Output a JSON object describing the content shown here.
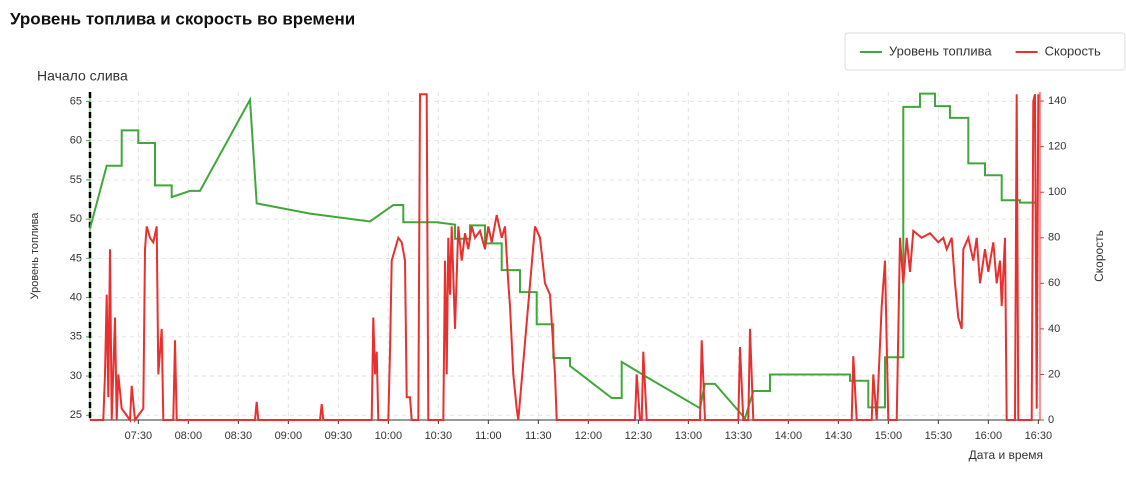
{
  "chart_data": {
    "type": "line",
    "title": "Уровень топлива и скорость во времени",
    "xlabel": "Дата и время",
    "ylabel": "Уровень топлива",
    "y2label": "Скорость",
    "legend": "top-right",
    "grid": true,
    "annotation": {
      "text": "Начало слива",
      "x": "07:01"
    },
    "xlim": [
      "07:01",
      "16:31"
    ],
    "xticks": [
      "07:30",
      "08:00",
      "08:30",
      "09:00",
      "09:30",
      "10:00",
      "10:30",
      "11:00",
      "11:30",
      "12:00",
      "12:30",
      "13:00",
      "13:30",
      "14:00",
      "14:30",
      "15:00",
      "15:30",
      "16:00",
      "16:30"
    ],
    "ylim": [
      24.4,
      66.2
    ],
    "yticks": [
      25,
      30,
      35,
      40,
      45,
      50,
      55,
      60,
      65
    ],
    "y2lim": [
      0,
      144
    ],
    "y2ticks": [
      0,
      20,
      40,
      60,
      80,
      100,
      120,
      140
    ],
    "series": [
      {
        "name": "Уровень топлива",
        "color": "#3fa83a",
        "axis": "y",
        "x": [
          "07:01",
          "07:11",
          "07:20",
          "07:20",
          "07:30",
          "07:30",
          "07:40",
          "07:40",
          "07:50",
          "07:50",
          "08:01",
          "08:07",
          "08:37",
          "08:41",
          "09:13",
          "09:49",
          "10:03",
          "10:09",
          "10:09",
          "10:29",
          "10:40",
          "10:40",
          "10:49",
          "10:49",
          "10:58",
          "10:58",
          "11:08",
          "11:08",
          "11:19",
          "11:19",
          "11:29",
          "11:29",
          "11:39",
          "11:39",
          "11:49",
          "11:49",
          "12:14",
          "12:20",
          "12:20",
          "12:38",
          "13:07",
          "13:10",
          "13:16",
          "13:34",
          "13:39",
          "13:49",
          "13:49",
          "14:37",
          "14:37",
          "14:48",
          "14:48",
          "14:58",
          "14:58",
          "15:09",
          "15:09",
          "15:19",
          "15:19",
          "15:28",
          "15:28",
          "15:37",
          "15:37",
          "15:48",
          "15:48",
          "15:58",
          "15:58",
          "16:08",
          "16:08",
          "16:19",
          "16:19",
          "16:29"
        ],
        "values": [
          48.8,
          56.8,
          56.8,
          61.3,
          61.3,
          59.7,
          59.7,
          54.3,
          54.3,
          52.8,
          53.6,
          53.6,
          65.2,
          52.0,
          50.7,
          49.7,
          51.8,
          51.8,
          49.6,
          49.6,
          49.3,
          47.5,
          47.5,
          49.2,
          49.2,
          46.9,
          46.9,
          43.5,
          43.5,
          40.7,
          40.7,
          36.6,
          36.6,
          32.3,
          32.3,
          31.3,
          27.2,
          27.2,
          31.8,
          29.5,
          25.9,
          29.0,
          29.0,
          24.6,
          28.1,
          28.1,
          30.2,
          30.2,
          29.4,
          29.4,
          26.0,
          26.0,
          32.4,
          32.4,
          64.3,
          64.3,
          66.0,
          66.0,
          64.4,
          64.4,
          62.9,
          62.9,
          57.1,
          57.1,
          55.6,
          55.6,
          52.4,
          52.4,
          52.1,
          52.1
        ]
      },
      {
        "name": "Скорость",
        "color": "#e8302f",
        "axis": "y2",
        "x": [
          "07:01",
          "07:09",
          "07:10",
          "07:11",
          "07:12",
          "07:13",
          "07:14",
          "07:16",
          "07:17",
          "07:18",
          "07:20",
          "07:25",
          "07:26",
          "07:28",
          "07:33",
          "07:34",
          "07:35",
          "07:37",
          "07:39",
          "07:41",
          "07:42",
          "07:44",
          "07:45",
          "07:51",
          "07:52",
          "07:53",
          "08:40",
          "08:41",
          "08:42",
          "09:19",
          "09:20",
          "09:21",
          "09:50",
          "09:51",
          "09:52",
          "09:53",
          "09:54",
          "10:00",
          "10:01",
          "10:02",
          "10:04",
          "10:06",
          "10:08",
          "10:10",
          "10:11",
          "10:13",
          "10:14",
          "10:18",
          "10:19",
          "10:23",
          "10:24",
          "10:33",
          "10:34",
          "10:35",
          "10:36",
          "10:37",
          "10:38",
          "10:40",
          "10:42",
          "10:44",
          "10:46",
          "10:48",
          "10:50",
          "10:52",
          "10:55",
          "10:58",
          "11:00",
          "11:02",
          "11:05",
          "11:08",
          "11:10",
          "11:12",
          "11:13",
          "11:15",
          "11:17",
          "11:18",
          "11:28",
          "11:31",
          "11:34",
          "11:37",
          "11:40",
          "11:41",
          "12:28",
          "12:29",
          "12:31",
          "12:32",
          "12:33",
          "12:35",
          "13:07",
          "13:08",
          "13:10",
          "13:30",
          "13:31",
          "13:33",
          "13:36",
          "13:37",
          "13:39",
          "14:38",
          "14:39",
          "14:41",
          "14:50",
          "14:51",
          "14:53",
          "14:56",
          "14:58",
          "15:00",
          "15:05",
          "15:07",
          "15:09",
          "15:11",
          "15:13",
          "15:15",
          "15:20",
          "15:25",
          "15:30",
          "15:33",
          "15:35",
          "15:38",
          "15:40",
          "15:42",
          "15:44",
          "15:45",
          "15:48",
          "15:51",
          "15:53",
          "15:55",
          "15:58",
          "16:00",
          "16:03",
          "16:05",
          "16:07",
          "16:08",
          "16:10",
          "16:11",
          "16:16",
          "16:17",
          "16:18",
          "16:26",
          "16:27",
          "16:28",
          "16:29",
          "16:30"
        ],
        "values": [
          0,
          0,
          20,
          55,
          10,
          75,
          0,
          45,
          0,
          20,
          5,
          0,
          15,
          0,
          5,
          75,
          85,
          80,
          78,
          85,
          20,
          40,
          0,
          0,
          35,
          0,
          0,
          8,
          0,
          0,
          7,
          0,
          0,
          45,
          20,
          30,
          0,
          0,
          30,
          70,
          75,
          80,
          78,
          70,
          10,
          10,
          0,
          0,
          143,
          143,
          0,
          0,
          70,
          20,
          80,
          55,
          85,
          40,
          85,
          70,
          82,
          75,
          85,
          80,
          83,
          75,
          85,
          78,
          90,
          80,
          85,
          60,
          50,
          20,
          5,
          0,
          85,
          80,
          60,
          55,
          20,
          0,
          0,
          20,
          0,
          0,
          30,
          0,
          0,
          35,
          0,
          0,
          32,
          0,
          0,
          40,
          0,
          0,
          28,
          0,
          0,
          20,
          0,
          50,
          70,
          0,
          0,
          80,
          60,
          80,
          65,
          83,
          80,
          82,
          78,
          80,
          75,
          80,
          60,
          45,
          40,
          75,
          80,
          70,
          80,
          60,
          75,
          65,
          78,
          60,
          70,
          50,
          80,
          0,
          0,
          143,
          0,
          0,
          140,
          143,
          5,
          143
        ]
      }
    ]
  }
}
